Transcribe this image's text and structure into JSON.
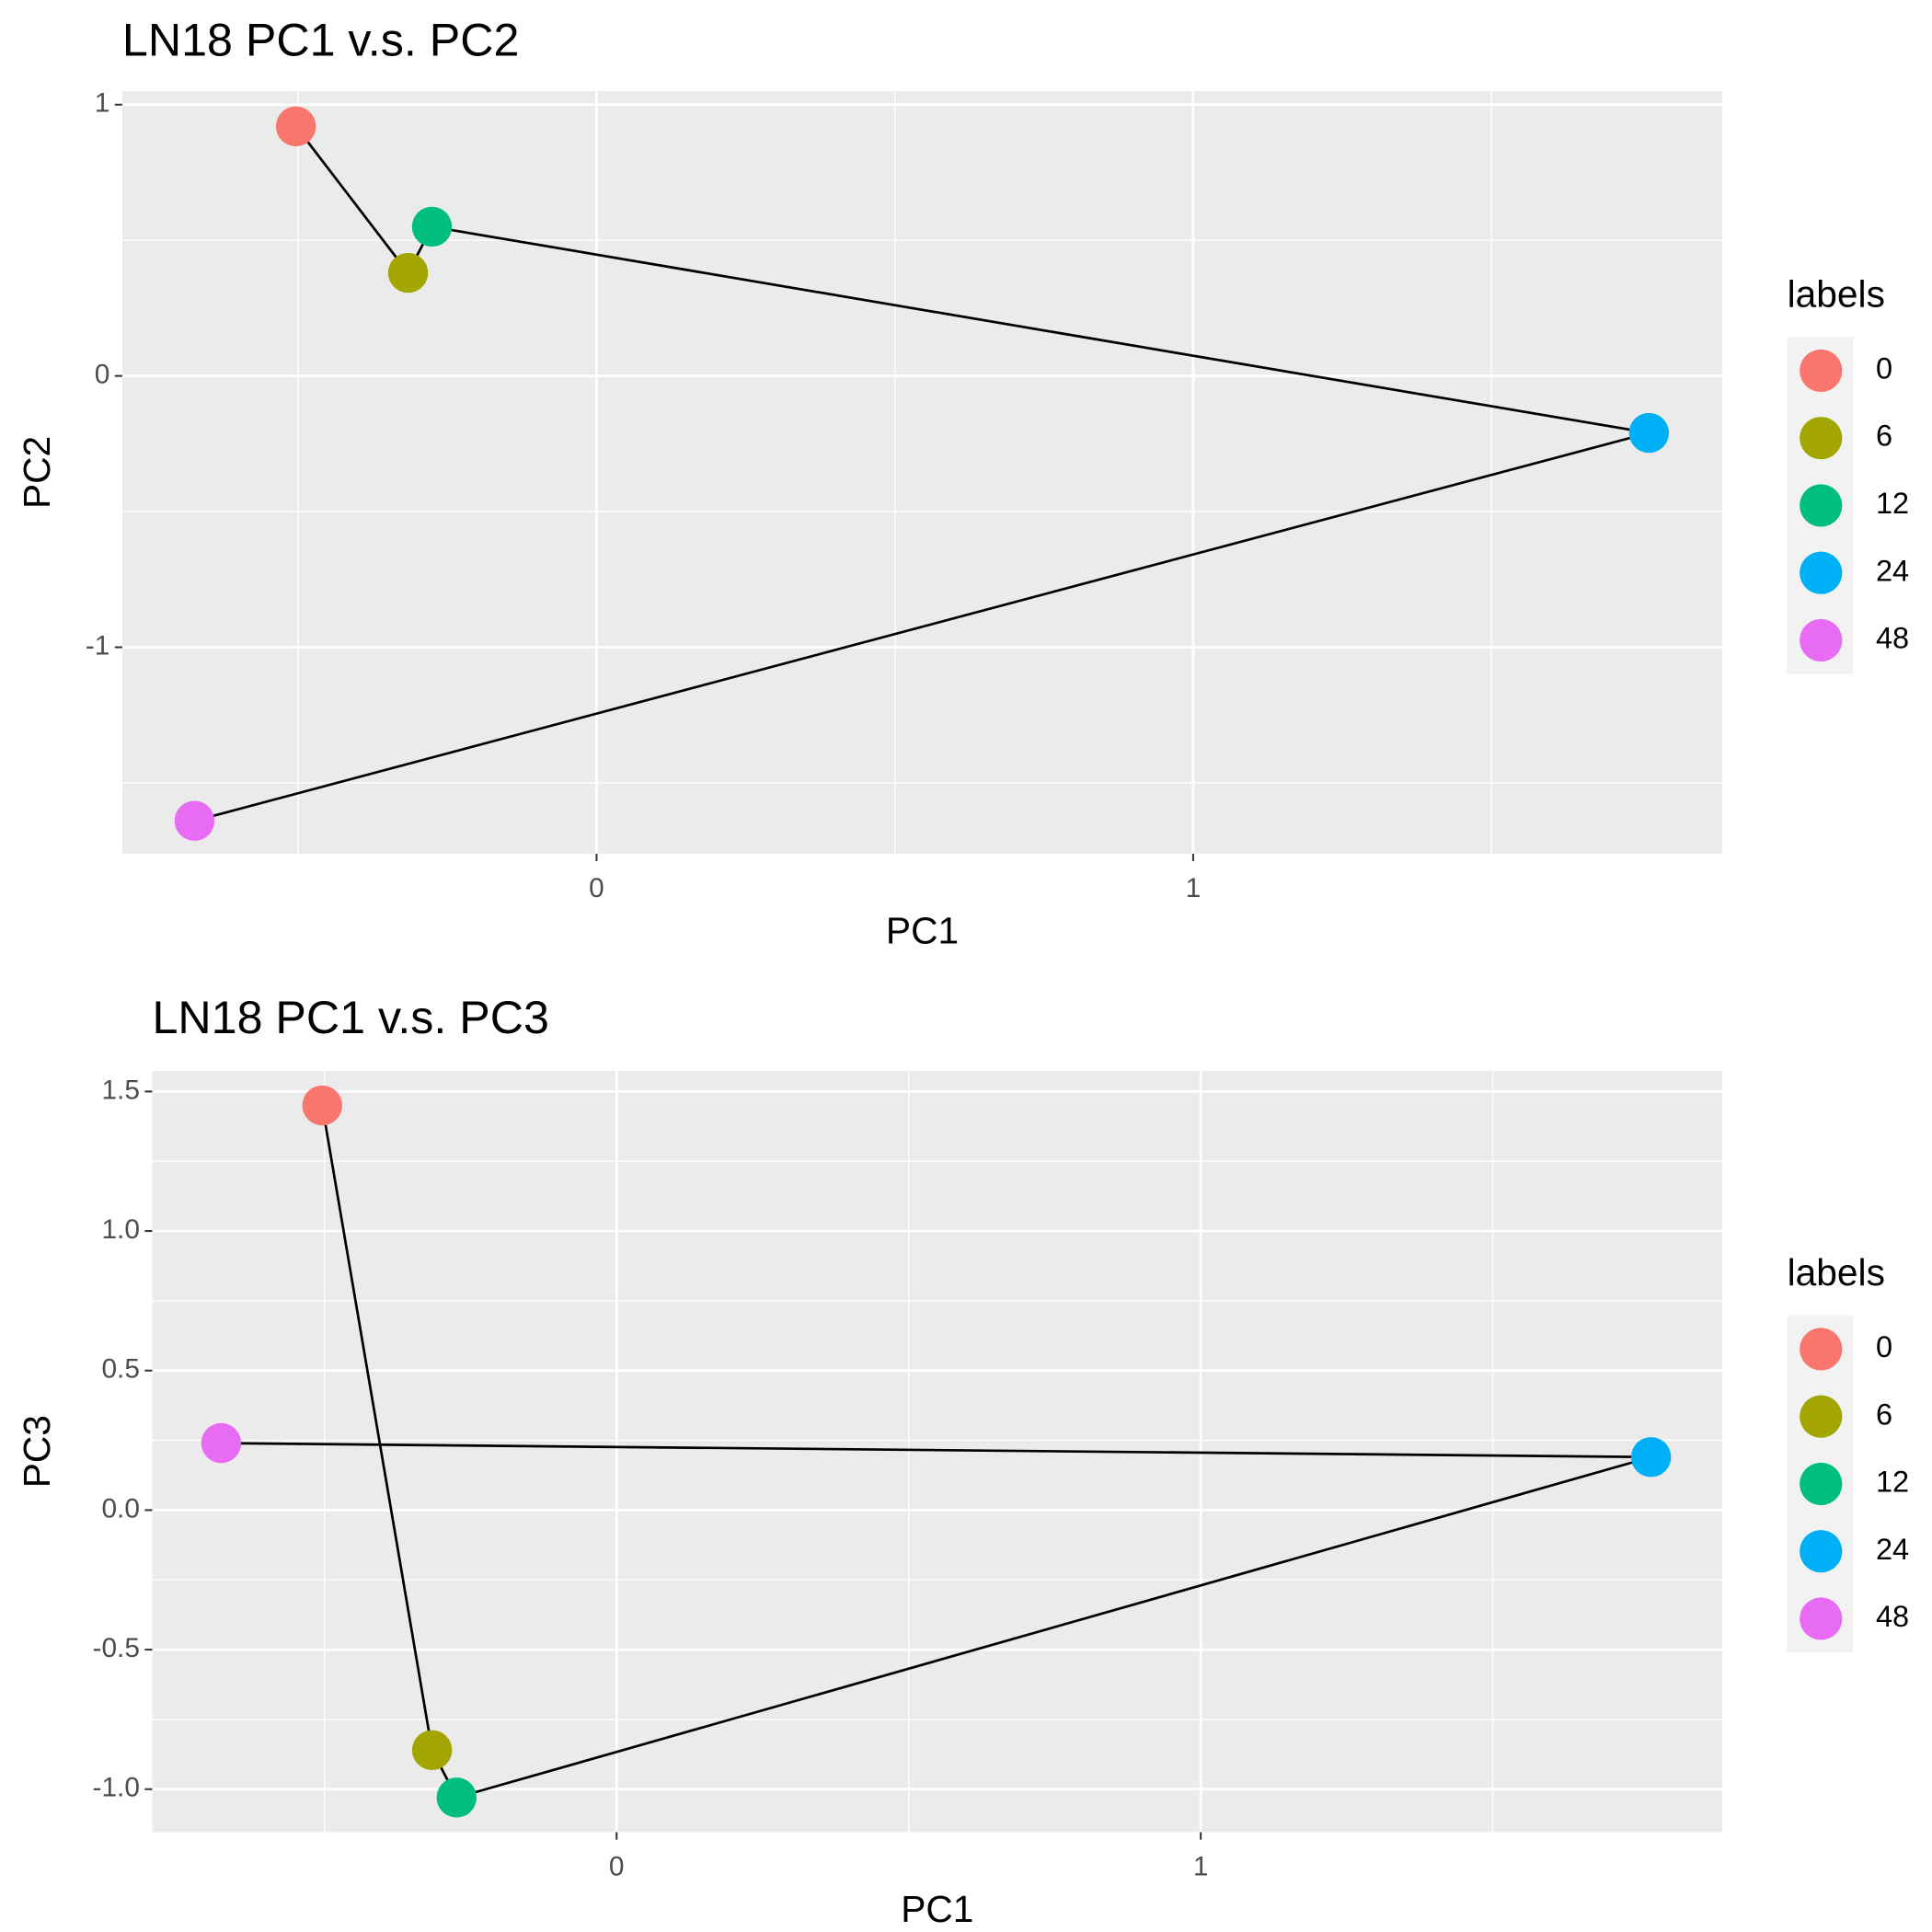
{
  "chart_data": [
    {
      "type": "scatter",
      "title": "LN18 PC1 v.s. PC2",
      "xlabel": "PC1",
      "ylabel": "PC2",
      "xlim": [
        -0.795,
        1.887
      ],
      "ylim": [
        -1.761,
        1.05
      ],
      "xticks": [
        0,
        1
      ],
      "yticks": [
        -1,
        0,
        1
      ],
      "grid": true,
      "connect": true,
      "line_color": "#000000",
      "legend_title": "labels",
      "legend": "right",
      "series": [
        {
          "name": "0",
          "color": "#f8766d",
          "x": [
            -0.504
          ],
          "values": [
            0.92
          ]
        },
        {
          "name": "6",
          "color": "#a3a500",
          "x": [
            -0.316
          ],
          "values": [
            0.38
          ]
        },
        {
          "name": "12",
          "color": "#00bf7d",
          "x": [
            -0.276
          ],
          "values": [
            0.55
          ]
        },
        {
          "name": "24",
          "color": "#00b0f6",
          "x": [
            1.764
          ],
          "values": [
            -0.21
          ]
        },
        {
          "name": "48",
          "color": "#e76bf3",
          "x": [
            -0.674
          ],
          "values": [
            -1.64
          ]
        }
      ]
    },
    {
      "type": "scatter",
      "title": "LN18 PC1 v.s. PC3",
      "xlabel": "PC1",
      "ylabel": "PC3",
      "xlim": [
        -0.795,
        1.893
      ],
      "ylim": [
        -1.154,
        1.574
      ],
      "xticks": [
        0,
        1
      ],
      "yticks": [
        {
          "value": -1,
          "label": "-1.0"
        },
        -0.5,
        {
          "value": 0,
          "label": "0.0"
        },
        0.5,
        {
          "value": 1,
          "label": "1.0"
        },
        1.5
      ],
      "grid": true,
      "connect": true,
      "line_color": "#000000",
      "legend_title": "labels",
      "legend": "right",
      "series": [
        {
          "name": "0",
          "color": "#f8766d",
          "x": [
            -0.504
          ],
          "values": [
            1.45
          ]
        },
        {
          "name": "6",
          "color": "#a3a500",
          "x": [
            -0.316
          ],
          "values": [
            -0.86
          ]
        },
        {
          "name": "12",
          "color": "#00bf7d",
          "x": [
            -0.274
          ],
          "values": [
            -1.03
          ]
        },
        {
          "name": "24",
          "color": "#00b0f6",
          "x": [
            1.771
          ],
          "values": [
            0.19
          ]
        },
        {
          "name": "48",
          "color": "#e76bf3",
          "x": [
            -0.677
          ],
          "values": [
            0.24
          ]
        }
      ]
    }
  ]
}
